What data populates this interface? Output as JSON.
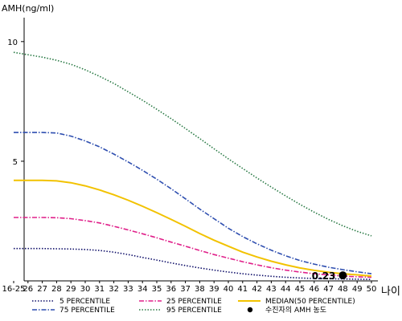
{
  "chart_data": {
    "type": "line",
    "ylabel": "AMH(ng/ml)",
    "xlabel": "나이",
    "categories": [
      "16-25",
      "26",
      "27",
      "28",
      "29",
      "30",
      "31",
      "32",
      "33",
      "34",
      "35",
      "36",
      "37",
      "38",
      "39",
      "40",
      "41",
      "42",
      "43",
      "44",
      "45",
      "46",
      "47",
      "48",
      "49",
      "50"
    ],
    "ylim": [
      0,
      11
    ],
    "yticks": [
      5,
      10
    ],
    "grid": false,
    "legend_position": "bottom",
    "series": [
      {
        "name": "5 PERCENTILE",
        "style": "dotted",
        "color": "#10106a",
        "values": [
          1.35,
          1.35,
          1.35,
          1.34,
          1.33,
          1.31,
          1.27,
          1.2,
          1.1,
          0.98,
          0.87,
          0.75,
          0.64,
          0.54,
          0.45,
          0.37,
          0.3,
          0.24,
          0.19,
          0.15,
          0.12,
          0.1,
          0.09,
          0.08,
          0.07,
          0.06
        ]
      },
      {
        "name": "75 PERCENTILE",
        "style": "dash-dot",
        "color": "#2f4fb0",
        "values": [
          6.2,
          6.2,
          6.2,
          6.18,
          6.05,
          5.85,
          5.6,
          5.3,
          4.97,
          4.62,
          4.25,
          3.85,
          3.43,
          3.0,
          2.6,
          2.2,
          1.85,
          1.55,
          1.28,
          1.05,
          0.85,
          0.7,
          0.57,
          0.47,
          0.38,
          0.3
        ]
      },
      {
        "name": "25 PERCENTILE",
        "style": "dash-dot",
        "color": "#e0208a",
        "values": [
          2.65,
          2.65,
          2.65,
          2.64,
          2.6,
          2.52,
          2.42,
          2.28,
          2.13,
          1.97,
          1.8,
          1.62,
          1.45,
          1.27,
          1.1,
          0.95,
          0.8,
          0.67,
          0.55,
          0.45,
          0.37,
          0.3,
          0.25,
          0.2,
          0.17,
          0.15
        ]
      },
      {
        "name": "95 PERCENTILE",
        "style": "dotted",
        "color": "#2a7a45",
        "values": [
          9.55,
          9.45,
          9.35,
          9.22,
          9.05,
          8.82,
          8.55,
          8.25,
          7.9,
          7.55,
          7.17,
          6.78,
          6.37,
          5.95,
          5.52,
          5.1,
          4.7,
          4.3,
          3.92,
          3.55,
          3.2,
          2.87,
          2.57,
          2.3,
          2.07,
          1.88
        ]
      },
      {
        "name": "MEDIAN(50 PERCENTILE)",
        "style": "solid",
        "color": "#f2c200",
        "values": [
          4.2,
          4.2,
          4.2,
          4.18,
          4.1,
          3.97,
          3.8,
          3.6,
          3.37,
          3.12,
          2.85,
          2.57,
          2.28,
          1.98,
          1.7,
          1.45,
          1.2,
          1.0,
          0.82,
          0.67,
          0.54,
          0.44,
          0.36,
          0.3,
          0.25,
          0.2
        ]
      }
    ],
    "point": {
      "name": "수진자의 AMH 농도",
      "x": "48",
      "y": 0.23,
      "label": "0.23",
      "color": "#000000"
    },
    "legend": [
      {
        "name": "5 PERCENTILE",
        "color": "#10106a",
        "style": "dotted"
      },
      {
        "name": "25 PERCENTILE",
        "color": "#e0208a",
        "style": "dash-dot"
      },
      {
        "name": "MEDIAN(50 PERCENTILE)",
        "color": "#f2c200",
        "style": "solid"
      },
      {
        "name": "75 PERCENTILE",
        "color": "#2f4fb0",
        "style": "dash-dot"
      },
      {
        "name": "95 PERCENTILE",
        "color": "#2a7a45",
        "style": "dotted"
      },
      {
        "name": "수진자의 AMH 농도",
        "color": "#000000",
        "style": "dot"
      }
    ]
  }
}
